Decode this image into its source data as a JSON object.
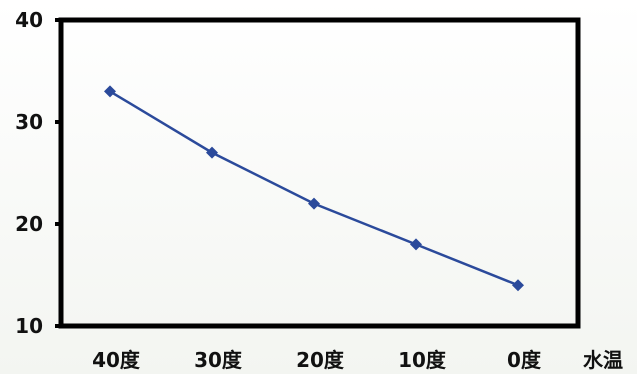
{
  "chart_data": {
    "type": "line",
    "title": "",
    "xlabel": "水温",
    "ylabel": "",
    "categories": [
      "40度",
      "30度",
      "20度",
      "10度",
      "0度"
    ],
    "series": [
      {
        "values": [
          33,
          27,
          22,
          18,
          14
        ]
      }
    ],
    "yticks": [
      "10",
      "20",
      "30",
      "40"
    ],
    "ylim": [
      10,
      40
    ],
    "grid": false,
    "legend": "none",
    "colors": {
      "line": "#2b4a9b",
      "marker": "#2b4a9b",
      "frame": "#000000",
      "text": "#111111"
    }
  }
}
